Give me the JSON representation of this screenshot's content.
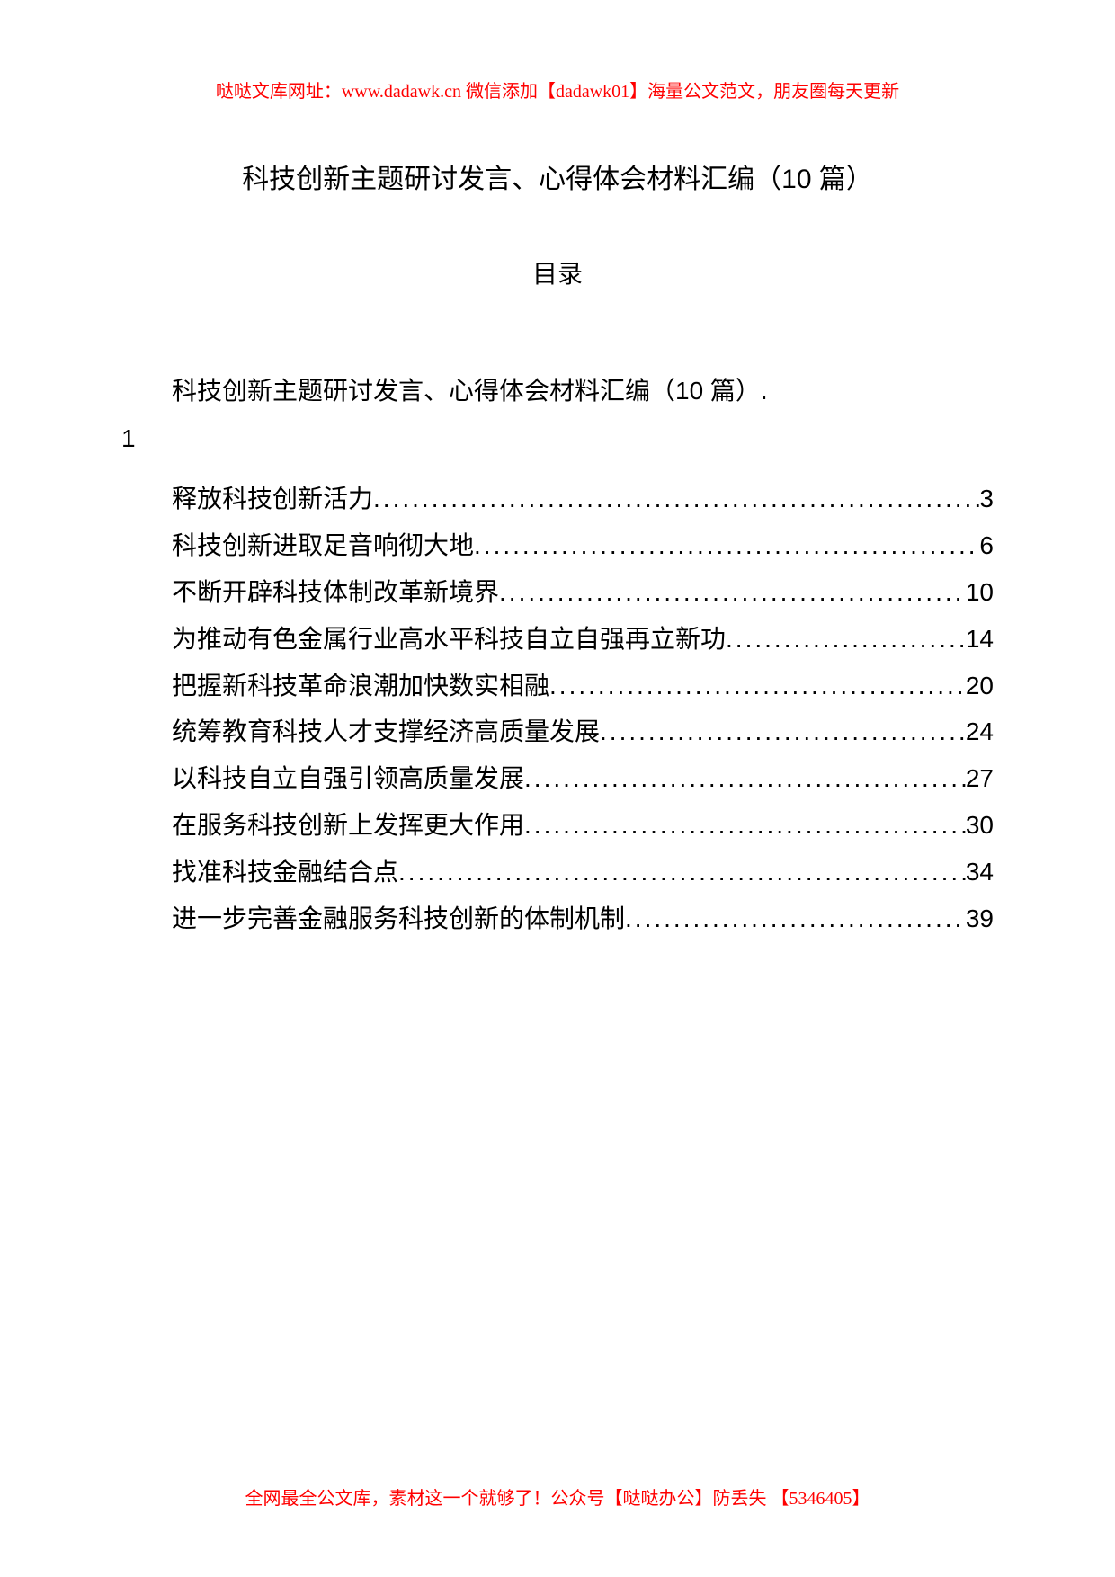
{
  "header": {
    "text": "哒哒文库网址：www.dadawk.cn  微信添加【dadawk01】海量公文范文，朋友圈每天更新"
  },
  "mainTitle": "科技创新主题研讨发言、心得体会材料汇编（10 篇）",
  "tocTitle": "目录",
  "tocIntro": {
    "text": "科技创新主题研讨发言、心得体会材料汇编（10 篇）.",
    "page": "1"
  },
  "tocEntries": [
    {
      "title": "释放科技创新活力",
      "page": "3"
    },
    {
      "title": "科技创新进取足音响彻大地",
      "page": "6"
    },
    {
      "title": "不断开辟科技体制改革新境界",
      "page": "10"
    },
    {
      "title": "为推动有色金属行业高水平科技自立自强再立新功",
      "page": "14"
    },
    {
      "title": "把握新科技革命浪潮加快数实相融",
      "page": "20"
    },
    {
      "title": "统筹教育科技人才支撑经济高质量发展",
      "page": "24"
    },
    {
      "title": "以科技自立自强引领高质量发展",
      "page": "27"
    },
    {
      "title": "在服务科技创新上发挥更大作用",
      "page": "30"
    },
    {
      "title": "找准科技金融结合点",
      "page": "34"
    },
    {
      "title": "进一步完善金融服务科技创新的体制机制",
      "page": "39"
    }
  ],
  "footer": {
    "text": "全网最全公文库，素材这一个就够了！公众号【哒哒办公】防丢失 【5346405】"
  }
}
